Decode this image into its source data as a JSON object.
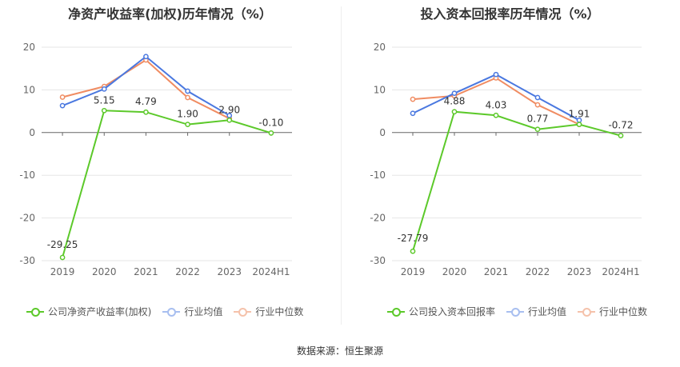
{
  "source_label": "数据来源：恒生聚源",
  "chart_data": [
    {
      "type": "line",
      "title": "净资产收益率(加权)历年情况（%）",
      "categories": [
        "2019",
        "2020",
        "2021",
        "2022",
        "2023",
        "2024H1"
      ],
      "ylim": [
        -30,
        20
      ],
      "yticks": [
        20,
        10,
        0,
        -10,
        -20,
        -30
      ],
      "grid": true,
      "legend_position": "bottom",
      "series": [
        {
          "name": "公司净资产收益率(加权)",
          "color": "#5cc92a",
          "labeled": true,
          "values": [
            -29.25,
            5.15,
            4.79,
            1.9,
            2.9,
            -0.1
          ],
          "labels": [
            "-29.25",
            "5.15",
            "4.79",
            "1.90",
            "2.90",
            "-0.10"
          ]
        },
        {
          "name": "行业均值",
          "color": "#4a78e0",
          "values": [
            6.3,
            10.2,
            17.8,
            9.7,
            4.0,
            null
          ]
        },
        {
          "name": "行业中位数",
          "color": "#f08c62",
          "values": [
            8.3,
            10.8,
            17.0,
            8.2,
            3.3,
            null
          ]
        }
      ]
    },
    {
      "type": "line",
      "title": "投入资本回报率历年情况（%）",
      "categories": [
        "2019",
        "2020",
        "2021",
        "2022",
        "2023",
        "2024H1"
      ],
      "ylim": [
        -30,
        20
      ],
      "yticks": [
        20,
        10,
        0,
        -10,
        -20,
        -30
      ],
      "grid": true,
      "legend_position": "bottom",
      "series": [
        {
          "name": "公司投入资本回报率",
          "color": "#5cc92a",
          "labeled": true,
          "values": [
            -27.79,
            4.88,
            4.03,
            0.77,
            1.91,
            -0.72
          ],
          "labels": [
            "-27.79",
            "4.88",
            "4.03",
            "0.77",
            "1.91",
            "-0.72"
          ]
        },
        {
          "name": "行业均值",
          "color": "#4a78e0",
          "values": [
            4.5,
            9.2,
            13.6,
            8.2,
            2.9,
            null
          ]
        },
        {
          "name": "行业中位数",
          "color": "#f08c62",
          "values": [
            7.8,
            8.6,
            12.8,
            6.5,
            1.9,
            null
          ]
        }
      ]
    }
  ]
}
